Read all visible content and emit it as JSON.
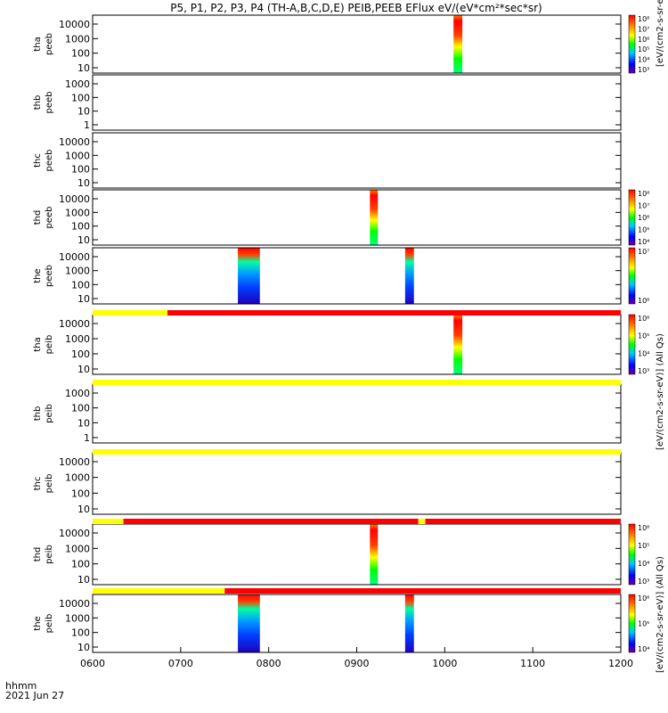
{
  "chart_data": {
    "type": "heatmap",
    "title": "P5, P1, P2, P3, P4 (TH-A,B,C,D,E) PEIB,PEEB EFlux eV/(eV*cm²*sec*sr)",
    "x_ticks": [
      "0600",
      "0700",
      "0800",
      "0900",
      "1000",
      "1100",
      "1200"
    ],
    "xlim": [
      "0600",
      "1200"
    ],
    "footer_label_1": "hhmm",
    "footer_label_2": "2021 Jun 27",
    "panels": [
      {
        "id": "tha-peeb",
        "ylabel_1": "tha",
        "ylabel_2": "peeb",
        "y_ticks": [
          "10",
          "100",
          "1000",
          "10000"
        ],
        "bursts": [
          {
            "start": "1010",
            "end": "1020"
          }
        ],
        "colorbar_ticks": [
          "10³",
          "10⁴",
          "10⁵",
          "10⁶",
          "10⁷",
          "10⁸"
        ],
        "colorbar_label": "[eV/(cm2-s-sr-eV)] (All Qs)"
      },
      {
        "id": "thb-peeb",
        "ylabel_1": "thb",
        "ylabel_2": "peeb",
        "y_ticks": [
          "1",
          "10",
          "100",
          "1000"
        ],
        "bursts": []
      },
      {
        "id": "thc-peeb",
        "ylabel_1": "thc",
        "ylabel_2": "peeb",
        "y_ticks": [
          "10",
          "100",
          "1000",
          "10000"
        ],
        "bursts": []
      },
      {
        "id": "thd-peeb",
        "ylabel_1": "thd",
        "ylabel_2": "peeb",
        "y_ticks": [
          "10",
          "100",
          "1000",
          "10000"
        ],
        "bursts": [
          {
            "start": "0915",
            "end": "0924"
          }
        ],
        "colorbar_ticks": [
          "10⁴",
          "10⁵",
          "10⁶",
          "10⁷",
          "10⁸"
        ],
        "colorbar_label": "[eV/(cm2-s-sr-eV)] (All Qs)"
      },
      {
        "id": "the-peeb",
        "ylabel_1": "the",
        "ylabel_2": "peeb",
        "y_ticks": [
          "10",
          "100",
          "1000",
          "10000"
        ],
        "bursts": [
          {
            "start": "0765",
            "end": "0790"
          },
          {
            "start": "0955",
            "end": "0965"
          }
        ],
        "colorbar_ticks": [
          "10⁶",
          "10⁷"
        ],
        "colorbar_label": "[eV/(cm2-s-sr-eV)] (All Qs)"
      },
      {
        "id": "tha-peib",
        "ylabel_1": "tha",
        "ylabel_2": "peib",
        "y_ticks": [
          "10",
          "100",
          "1000",
          "10000"
        ],
        "bursts": [
          {
            "start": "1010",
            "end": "1020"
          }
        ],
        "colorbar_ticks": [
          "10³",
          "10⁴",
          "10⁵",
          "10⁶"
        ],
        "colorbar_label": "[eV/(cm2-s-sr-eV)] (All Qs)"
      },
      {
        "id": "thb-peib",
        "ylabel_1": "thb",
        "ylabel_2": "peib",
        "y_ticks": [
          "1",
          "10",
          "100",
          "1000"
        ],
        "bursts": []
      },
      {
        "id": "thc-peib",
        "ylabel_1": "thc",
        "ylabel_2": "peib",
        "y_ticks": [
          "10",
          "100",
          "1000",
          "10000"
        ],
        "bursts": []
      },
      {
        "id": "thd-peib",
        "ylabel_1": "thd",
        "ylabel_2": "peib",
        "y_ticks": [
          "10",
          "100",
          "1000",
          "10000"
        ],
        "bursts": [
          {
            "start": "0915",
            "end": "0924"
          }
        ],
        "colorbar_ticks": [
          "10³",
          "10⁴",
          "10⁵",
          "10⁶"
        ],
        "colorbar_label": "[eV/(cm2-s-sr-eV)] (All Qs)"
      },
      {
        "id": "the-peib",
        "ylabel_1": "the",
        "ylabel_2": "peib",
        "y_ticks": [
          "10",
          "100",
          "1000",
          "10000"
        ],
        "bursts": [
          {
            "start": "0765",
            "end": "0790"
          },
          {
            "start": "0955",
            "end": "0965"
          }
        ],
        "colorbar_ticks": [
          "10⁴",
          "10⁵",
          "10⁶"
        ],
        "colorbar_label": "[eV/(cm2-s-sr-eV)] (All Qs)"
      }
    ],
    "status_bars": [
      {
        "after_panel": "the-peeb",
        "segments": [
          {
            "color": "#ffff00",
            "start": "0600",
            "end": "0685"
          },
          {
            "color": "#ff0000",
            "start": "0685",
            "end": "1200"
          }
        ]
      },
      {
        "after_panel": "thb-peeb-gap",
        "segments": [
          {
            "color": "#ffff00",
            "start": "0600",
            "end": "1200"
          }
        ]
      },
      {
        "after_panel": "thb-peib",
        "segments": [
          {
            "color": "#ffff00",
            "start": "0600",
            "end": "1200"
          }
        ]
      },
      {
        "after_panel": "thc-peib",
        "segments": [
          {
            "color": "#ffff00",
            "start": "0600",
            "end": "0635"
          },
          {
            "color": "#ff0000",
            "start": "0635",
            "end": "0970"
          },
          {
            "color": "#ffff00",
            "start": "0970",
            "end": "0978"
          },
          {
            "color": "#ff0000",
            "start": "0978",
            "end": "1200"
          }
        ]
      },
      {
        "after_panel": "thd-peib",
        "segments": [
          {
            "color": "#ffff00",
            "start": "0600",
            "end": "0750"
          },
          {
            "color": "#ff0000",
            "start": "0750",
            "end": "1200"
          }
        ]
      }
    ],
    "colors": {
      "high": "#ff0000",
      "mid": "#00ff00",
      "low": "#0000ff",
      "status_yellow": "#ffff00",
      "status_red": "#ff0000"
    }
  }
}
